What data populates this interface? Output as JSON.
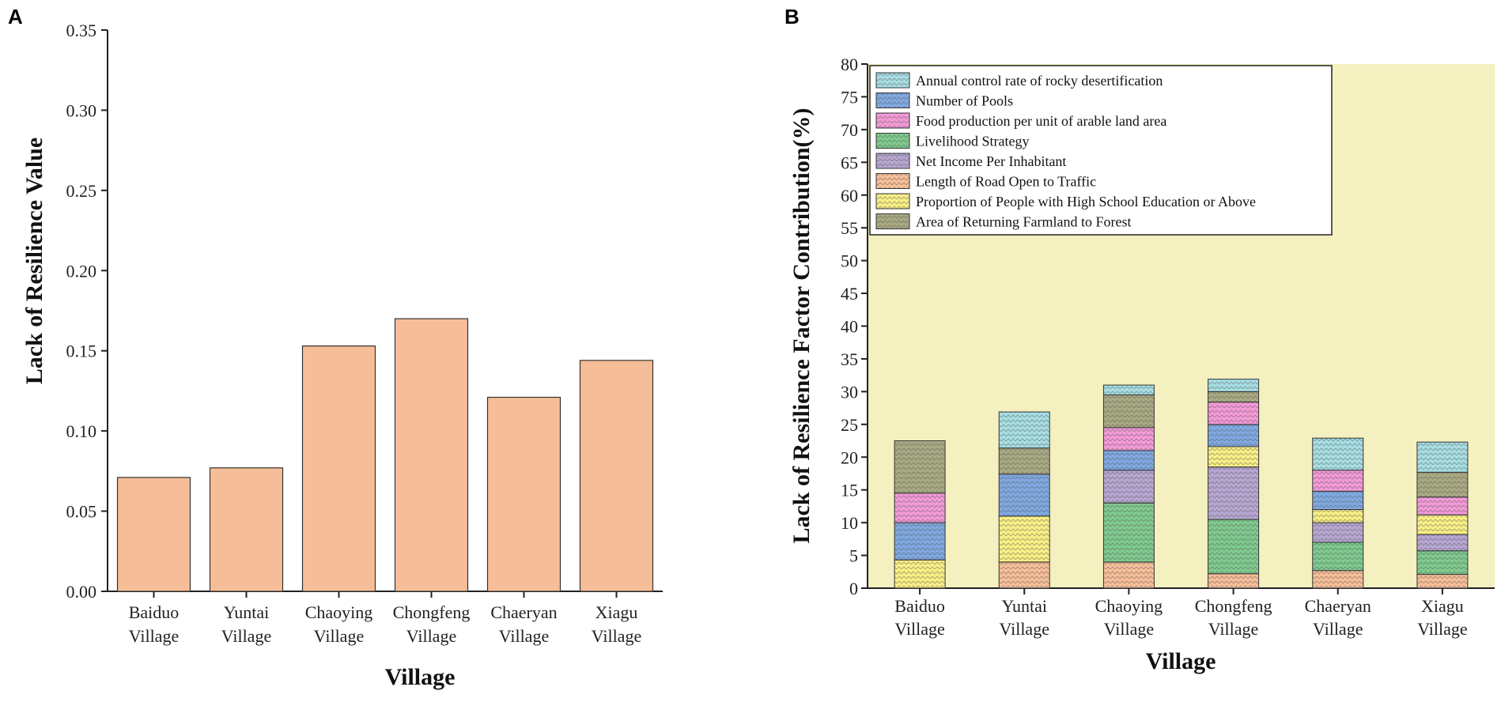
{
  "panels": [
    {
      "letter": "A",
      "chart_data": {
        "type": "bar",
        "categories": [
          [
            "Baiduo",
            "Village"
          ],
          [
            "Yuntai",
            "Village"
          ],
          [
            "Chaoying",
            "Village"
          ],
          [
            "Chongfeng",
            "Village"
          ],
          [
            "Chaeryan",
            "Village"
          ],
          [
            "Xiagu",
            "Village"
          ]
        ],
        "values": [
          0.071,
          0.077,
          0.153,
          0.17,
          0.121,
          0.144
        ],
        "xlabel": "Village",
        "ylabel": "Lack of Resilience Value",
        "ylim": [
          0,
          0.35
        ],
        "yticks": [
          "0.00",
          "0.05",
          "0.10",
          "0.15",
          "0.20",
          "0.25",
          "0.30",
          "0.35"
        ],
        "bar_color": "#f6be98",
        "bar_edge": "#333333"
      }
    },
    {
      "letter": "B",
      "chart_data": {
        "type": "bar",
        "stacked": true,
        "categories": [
          [
            "Baiduo",
            "Village"
          ],
          [
            "Yuntai",
            "Village"
          ],
          [
            "Chaoying",
            "Village"
          ],
          [
            "Chongfeng",
            "Village"
          ],
          [
            "Chaeryan",
            "Village"
          ],
          [
            "Xiagu",
            "Village"
          ]
        ],
        "xlabel": "Village",
        "ylabel": "Lack of Resilience Factor Contribution(%)",
        "ylim": [
          0,
          80
        ],
        "yticks": [
          "0",
          "5",
          "10",
          "15",
          "20",
          "25",
          "30",
          "35",
          "40",
          "45",
          "50",
          "55",
          "60",
          "65",
          "70",
          "75",
          "80"
        ],
        "background": "#f5f0bf",
        "legend_position": "top-left",
        "series": [
          {
            "name": "Length of Road Open to Traffic",
            "color": "#f6be98",
            "values": [
              0,
              4,
              4,
              2.2,
              2.7,
              2.1
            ]
          },
          {
            "name": "Livelihood Strategy",
            "color": "#7fc98e",
            "values": [
              0,
              0,
              9,
              8.3,
              4.3,
              3.6
            ]
          },
          {
            "name": "Net Income Per Inhabitant",
            "color": "#b6a6d1",
            "values": [
              0,
              0,
              5,
              8,
              3,
              2.5
            ]
          },
          {
            "name": "Proportion of People with High School Education or Above",
            "color": "#f7ee85",
            "values": [
              4.3,
              7,
              0,
              3.1,
              2,
              3
            ]
          },
          {
            "name": "Number of Pools",
            "color": "#7fa8e0",
            "values": [
              5.7,
              6.4,
              3,
              3.4,
              2.8,
              0
            ]
          },
          {
            "name": "Food production per unit of arable land area",
            "color": "#f29ad6",
            "values": [
              4.5,
              0,
              3.5,
              3.4,
              3.2,
              2.7
            ]
          },
          {
            "name": "Area of Returning Farmland to Forest",
            "color": "#a8a982",
            "values": [
              8,
              4,
              5,
              1.6,
              0,
              3.8
            ]
          },
          {
            "name": "Annual control rate of rocky desertification",
            "color": "#a6dde3",
            "values": [
              0,
              5.5,
              1.5,
              1.9,
              4.9,
              4.6
            ]
          }
        ],
        "legend_order": [
          "Annual control rate of rocky desertification",
          "Number of Pools",
          "Food production per unit of arable land area",
          "Livelihood Strategy",
          "Net Income Per Inhabitant",
          "Length of Road Open to Traffic",
          "Proportion of People with High School Education or Above",
          "Area of Returning Farmland to Forest"
        ]
      }
    }
  ]
}
